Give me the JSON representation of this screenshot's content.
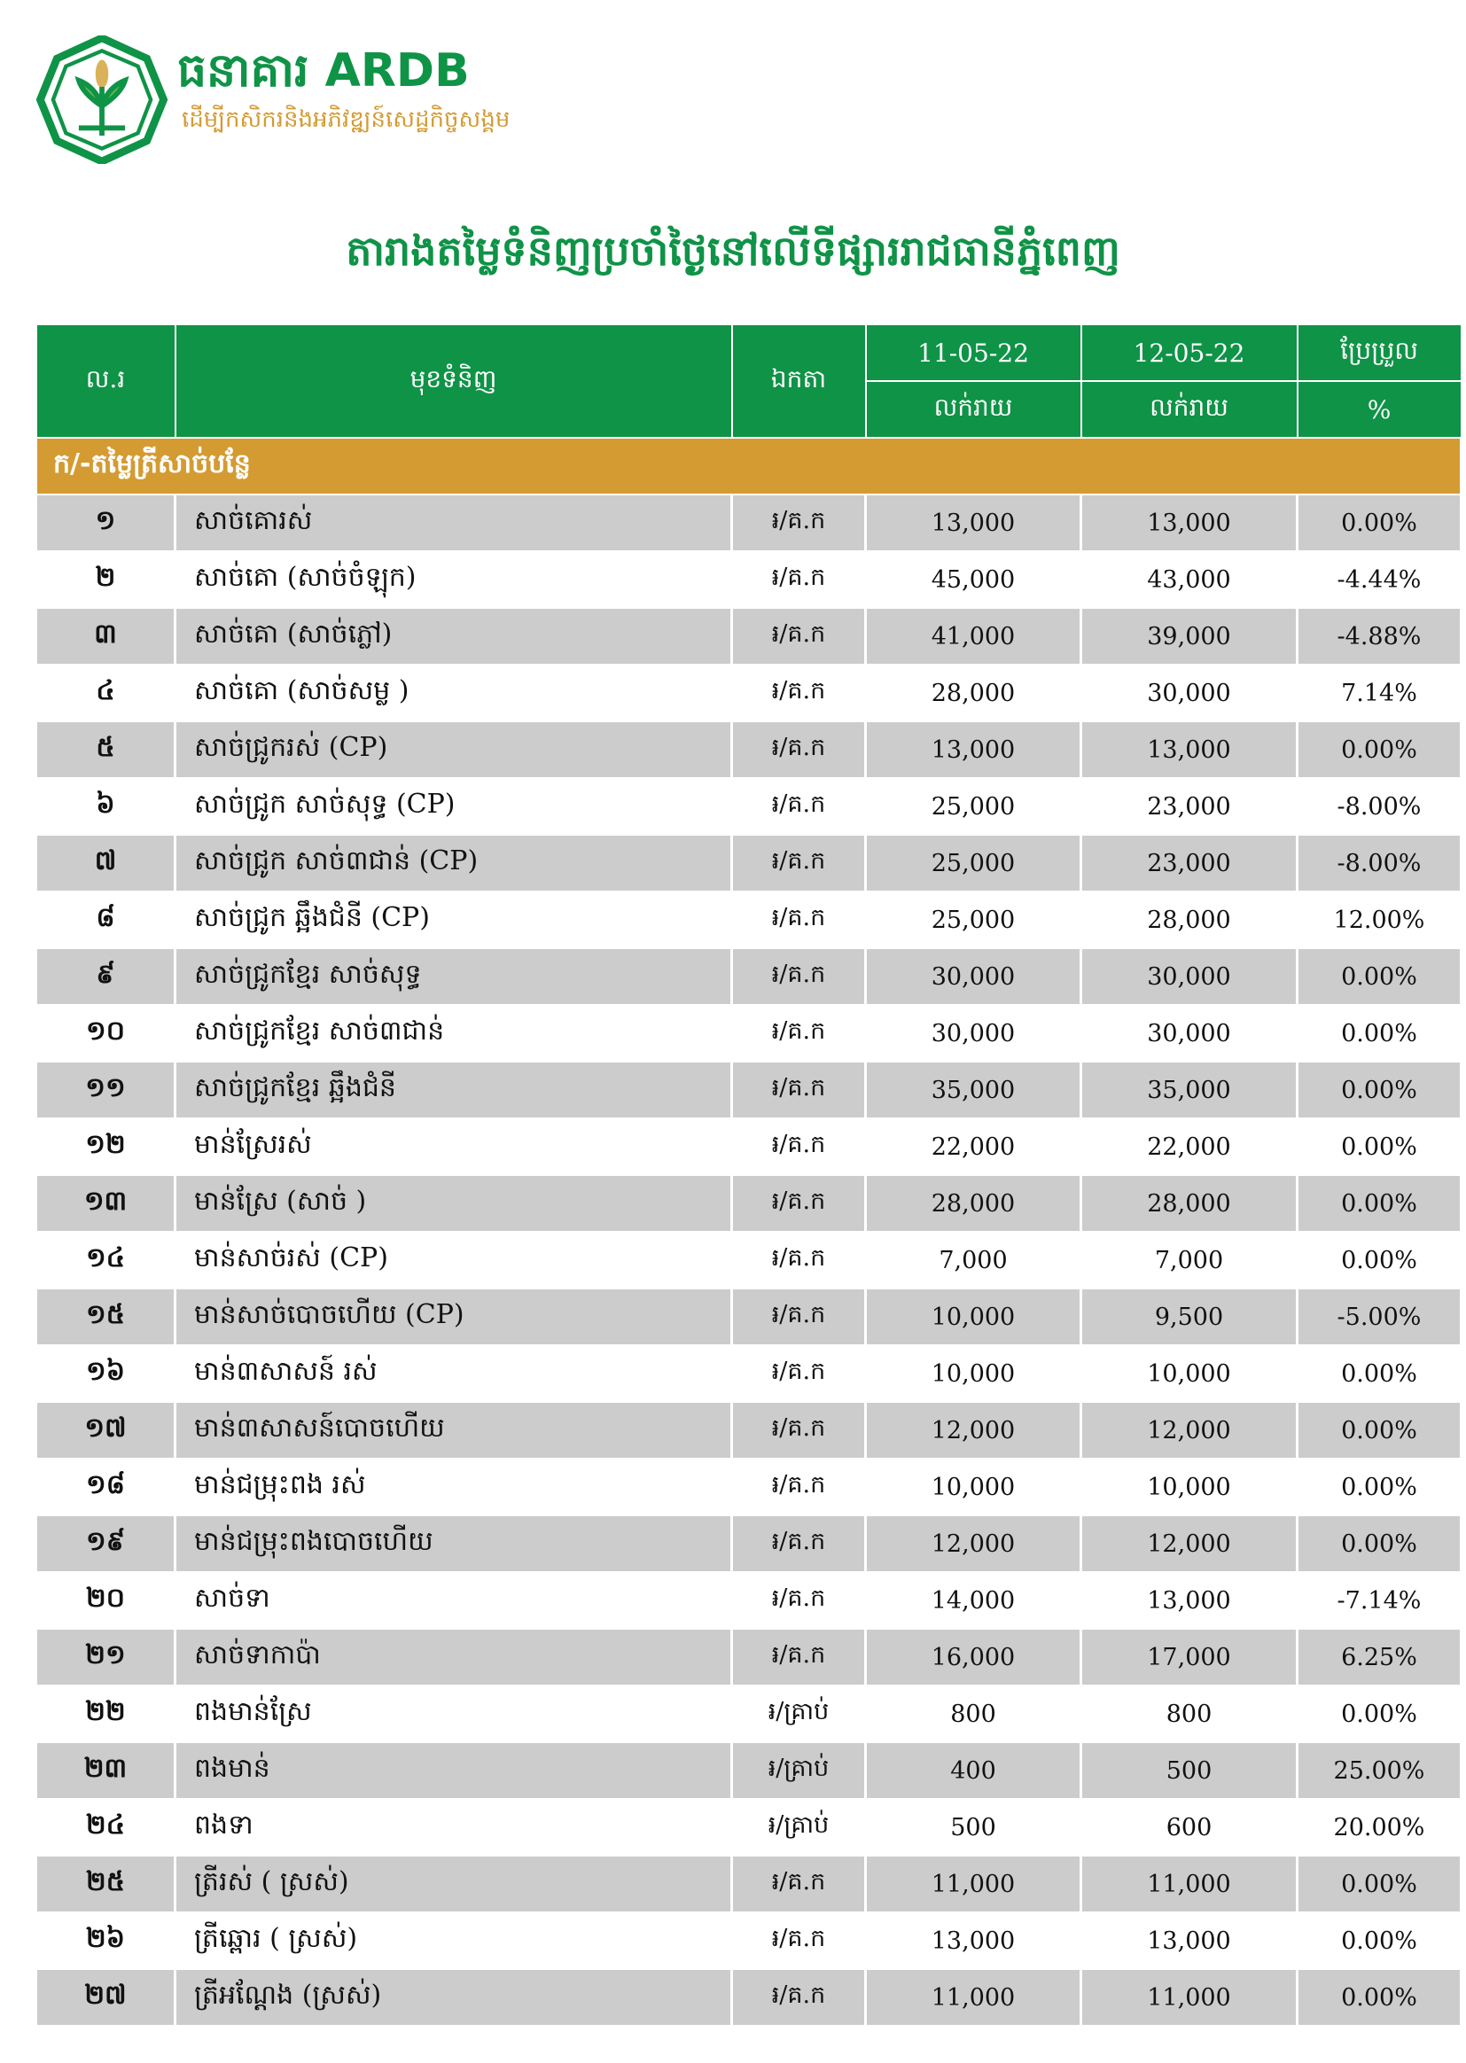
{
  "header": {
    "logo_text": "ARDB",
    "brand": "ធនាគារ ARDB",
    "tagline": "ដើម្បីកសិករនិងអភិវឌ្ឍន៍សេដ្ឋកិច្ចសង្គម",
    "brand_green": "#0f9347",
    "brand_gold": "#d49b32"
  },
  "title": "តារាងតម្លៃទំនិញប្រចាំថ្ងៃនៅលើទីផ្សាររាជធានីភ្នំពេញ",
  "table": {
    "headers": {
      "no": "ល.រ",
      "item": "មុខទំនិញ",
      "unit": "ឯកតា",
      "date1": "11-05-22",
      "date2": "12-05-22",
      "change": "ប្រែប្រួល",
      "retail1": "លក់រាយ",
      "retail2": "លក់រាយ",
      "percent": "%"
    },
    "section": "ក/-តម្លៃត្រីសាច់បន្លែ",
    "rows": [
      [
        "១",
        "សាច់គោរស់",
        "៛/គ.ក",
        "13,000",
        "13,000",
        "0.00%"
      ],
      [
        "២",
        "សាច់គោ (សាច់ចំឡុក)",
        "៛/គ.ក",
        "45,000",
        "43,000",
        "-4.44%"
      ],
      [
        "៣",
        "សាច់គោ (សាច់ភ្លៅ)",
        "៛/គ.ក",
        "41,000",
        "39,000",
        "-4.88%"
      ],
      [
        "៤",
        "សាច់គោ (សាច់សម្ល )",
        "៛/គ.ក",
        "28,000",
        "30,000",
        "7.14%"
      ],
      [
        "៥",
        "សាច់ជ្រូករស់ (CP)",
        "៛/គ.ក",
        "13,000",
        "13,000",
        "0.00%"
      ],
      [
        "៦",
        "សាច់ជ្រូក សាច់សុទ្ធ (CP)",
        "៛/គ.ក",
        "25,000",
        "23,000",
        "-8.00%"
      ],
      [
        "៧",
        "សាច់ជ្រូក សាច់៣ជាន់ (CP)",
        "៛/គ.ក",
        "25,000",
        "23,000",
        "-8.00%"
      ],
      [
        "៨",
        "សាច់ជ្រូក ឆ្អឹងជំនី (CP)",
        "៛/គ.ក",
        "25,000",
        "28,000",
        "12.00%"
      ],
      [
        "៩",
        "សាច់ជ្រូកខ្មែរ សាច់សុទ្ធ",
        "៛/គ.ក",
        "30,000",
        "30,000",
        "0.00%"
      ],
      [
        "១០",
        "សាច់ជ្រូកខ្មែរ សាច់៣ជាន់",
        "៛/គ.ក",
        "30,000",
        "30,000",
        "0.00%"
      ],
      [
        "១១",
        "សាច់ជ្រូកខ្មែរ ឆ្អឹងជំនី",
        "៛/គ.ក",
        "35,000",
        "35,000",
        "0.00%"
      ],
      [
        "១២",
        "មាន់ស្រែរស់",
        "៛/គ.ក",
        "22,000",
        "22,000",
        "0.00%"
      ],
      [
        "១៣",
        "មាន់ស្រែ (សាច់ )",
        "៛/គ.ក",
        "28,000",
        "28,000",
        "0.00%"
      ],
      [
        "១៤",
        "មាន់សាច់រស់ (CP)",
        "៛/គ.ក",
        "7,000",
        "7,000",
        "0.00%"
      ],
      [
        "១៥",
        "មាន់សាច់បោចហើយ (CP)",
        "៛/គ.ក",
        "10,000",
        "9,500",
        "-5.00%"
      ],
      [
        "១៦",
        "មាន់៣សាសន៍ រស់",
        "៛/គ.ក",
        "10,000",
        "10,000",
        "0.00%"
      ],
      [
        "១៧",
        "មាន់៣សាសន៍បោចហើយ",
        "៛/គ.ក",
        "12,000",
        "12,000",
        "0.00%"
      ],
      [
        "១៨",
        "មាន់ជម្រុះពង រស់",
        "៛/គ.ក",
        "10,000",
        "10,000",
        "0.00%"
      ],
      [
        "១៩",
        "មាន់ជម្រុះពងបោចហើយ",
        "៛/គ.ក",
        "12,000",
        "12,000",
        "0.00%"
      ],
      [
        "២០",
        "សាច់ទា",
        "៛/គ.ក",
        "14,000",
        "13,000",
        "-7.14%"
      ],
      [
        "២១",
        "សាច់ទាកាប៉ា",
        "៛/គ.ក",
        "16,000",
        "17,000",
        "6.25%"
      ],
      [
        "២២",
        "ពងមាន់ស្រែ",
        "៛/គ្រាប់",
        "800",
        "800",
        "0.00%"
      ],
      [
        "២៣",
        "ពងមាន់",
        "៛/គ្រាប់",
        "400",
        "500",
        "25.00%"
      ],
      [
        "២៤",
        "ពងទា",
        "៛/គ្រាប់",
        "500",
        "600",
        "20.00%"
      ],
      [
        "២៥",
        "ត្រីរស់ ( ស្រស់)",
        "៛/គ.ក",
        "11,000",
        "11,000",
        "0.00%"
      ],
      [
        "២៦",
        "ត្រីឆ្ពោរ ( ស្រស់)",
        "៛/គ.ក",
        "13,000",
        "13,000",
        "0.00%"
      ],
      [
        "២៧",
        "ត្រីអណ្តែង (ស្រស់)",
        "៛/គ.ក",
        "11,000",
        "11,000",
        "0.00%"
      ]
    ]
  }
}
